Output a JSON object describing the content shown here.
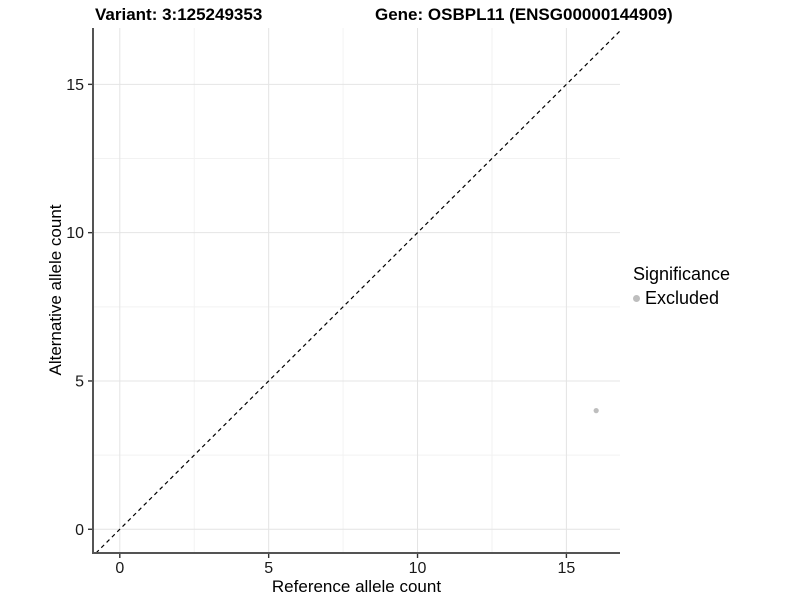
{
  "header": {
    "variant_title": "Variant: 3:125249353",
    "gene_title": "Gene: OSBPL11 (ENSG00000144909)"
  },
  "chart_data": {
    "type": "scatter",
    "title": "Variant: 3:125249353 / Gene: OSBPL11 (ENSG00000144909)",
    "xlabel": "Reference allele count",
    "ylabel": "Alternative allele count",
    "xlim": [
      -0.9,
      16.8
    ],
    "ylim": [
      -0.8,
      16.9
    ],
    "x_ticks": [
      0,
      5,
      10,
      15
    ],
    "y_ticks": [
      0,
      5,
      10,
      15
    ],
    "x_minor_ticks": [
      2.5,
      7.5,
      12.5
    ],
    "y_minor_ticks": [
      2.5,
      7.5,
      12.5
    ],
    "grid": true,
    "legend_position": "right",
    "identity_line": {
      "style": "dashed",
      "equation": "y = x",
      "color": "#000000"
    },
    "series": [
      {
        "name": "Excluded",
        "color": "#bebebe",
        "points": [
          {
            "x": 16,
            "y": 4
          }
        ]
      }
    ]
  },
  "legend": {
    "title": "Significance",
    "items": [
      {
        "label": "Excluded",
        "color": "#bebebe"
      }
    ]
  },
  "colors": {
    "background": "#ffffff",
    "grid_major": "#e4e4e4",
    "grid_minor": "#f2f2f2",
    "axis_line": "#545454",
    "tick_mark": "#333333",
    "tick_label": "#1a1a1a",
    "point_excluded": "#bebebe",
    "identity_line": "#000000"
  }
}
